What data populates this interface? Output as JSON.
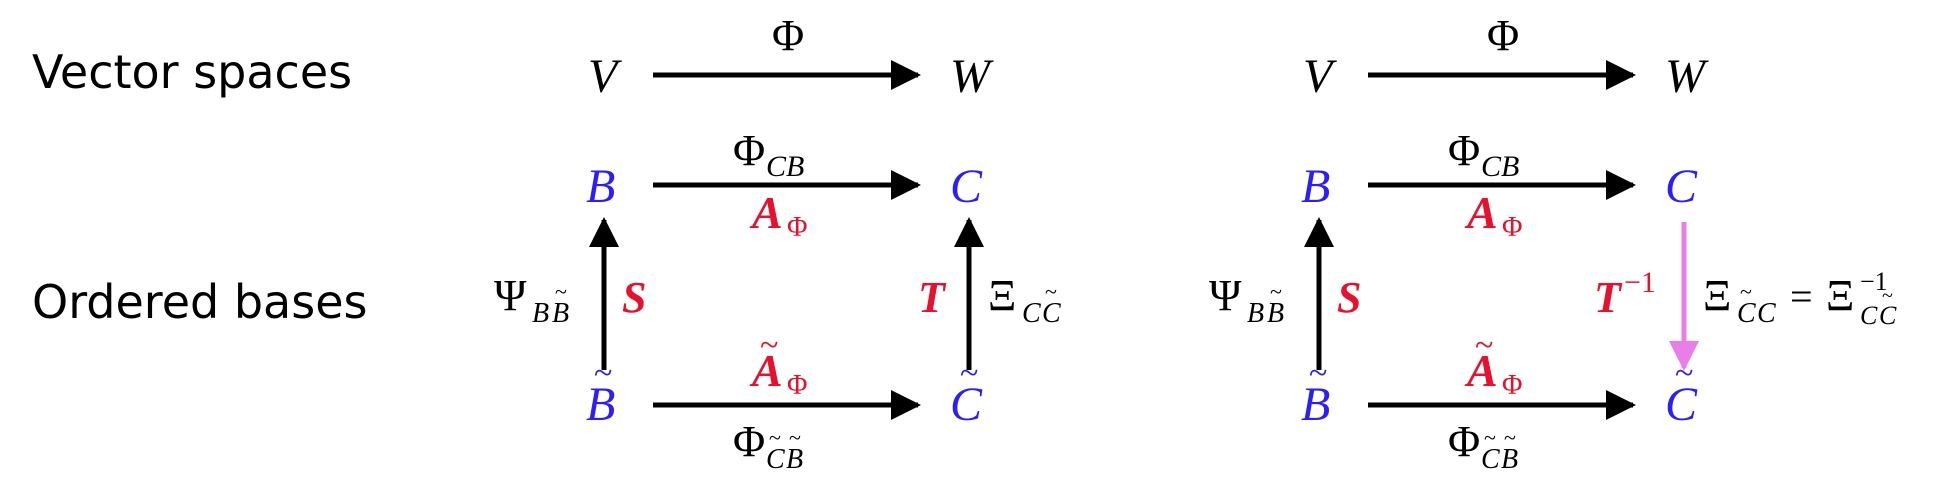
{
  "colors": {
    "black": "#000000",
    "blue": "#2c1dff",
    "red": "#e8102c",
    "pink": "#e97ee9"
  },
  "labels": {
    "vector_spaces": "Vector spaces",
    "ordered_bases": "Ordered bases"
  },
  "symbols": {
    "V": "V",
    "W": "W",
    "B": "B",
    "C": "C",
    "Phi": "Φ",
    "Psi": "Ψ",
    "Xi": "Ξ",
    "S": "S",
    "T": "T",
    "A": "A",
    "tilde": "~",
    "sub_CB": "CB",
    "sup_minus1": "−1",
    "equals": "="
  },
  "diagrams": [
    {
      "id": "left",
      "right_vertical": "T",
      "right_direction": "up"
    },
    {
      "id": "right",
      "right_vertical": "T^-1",
      "right_direction": "down"
    }
  ]
}
